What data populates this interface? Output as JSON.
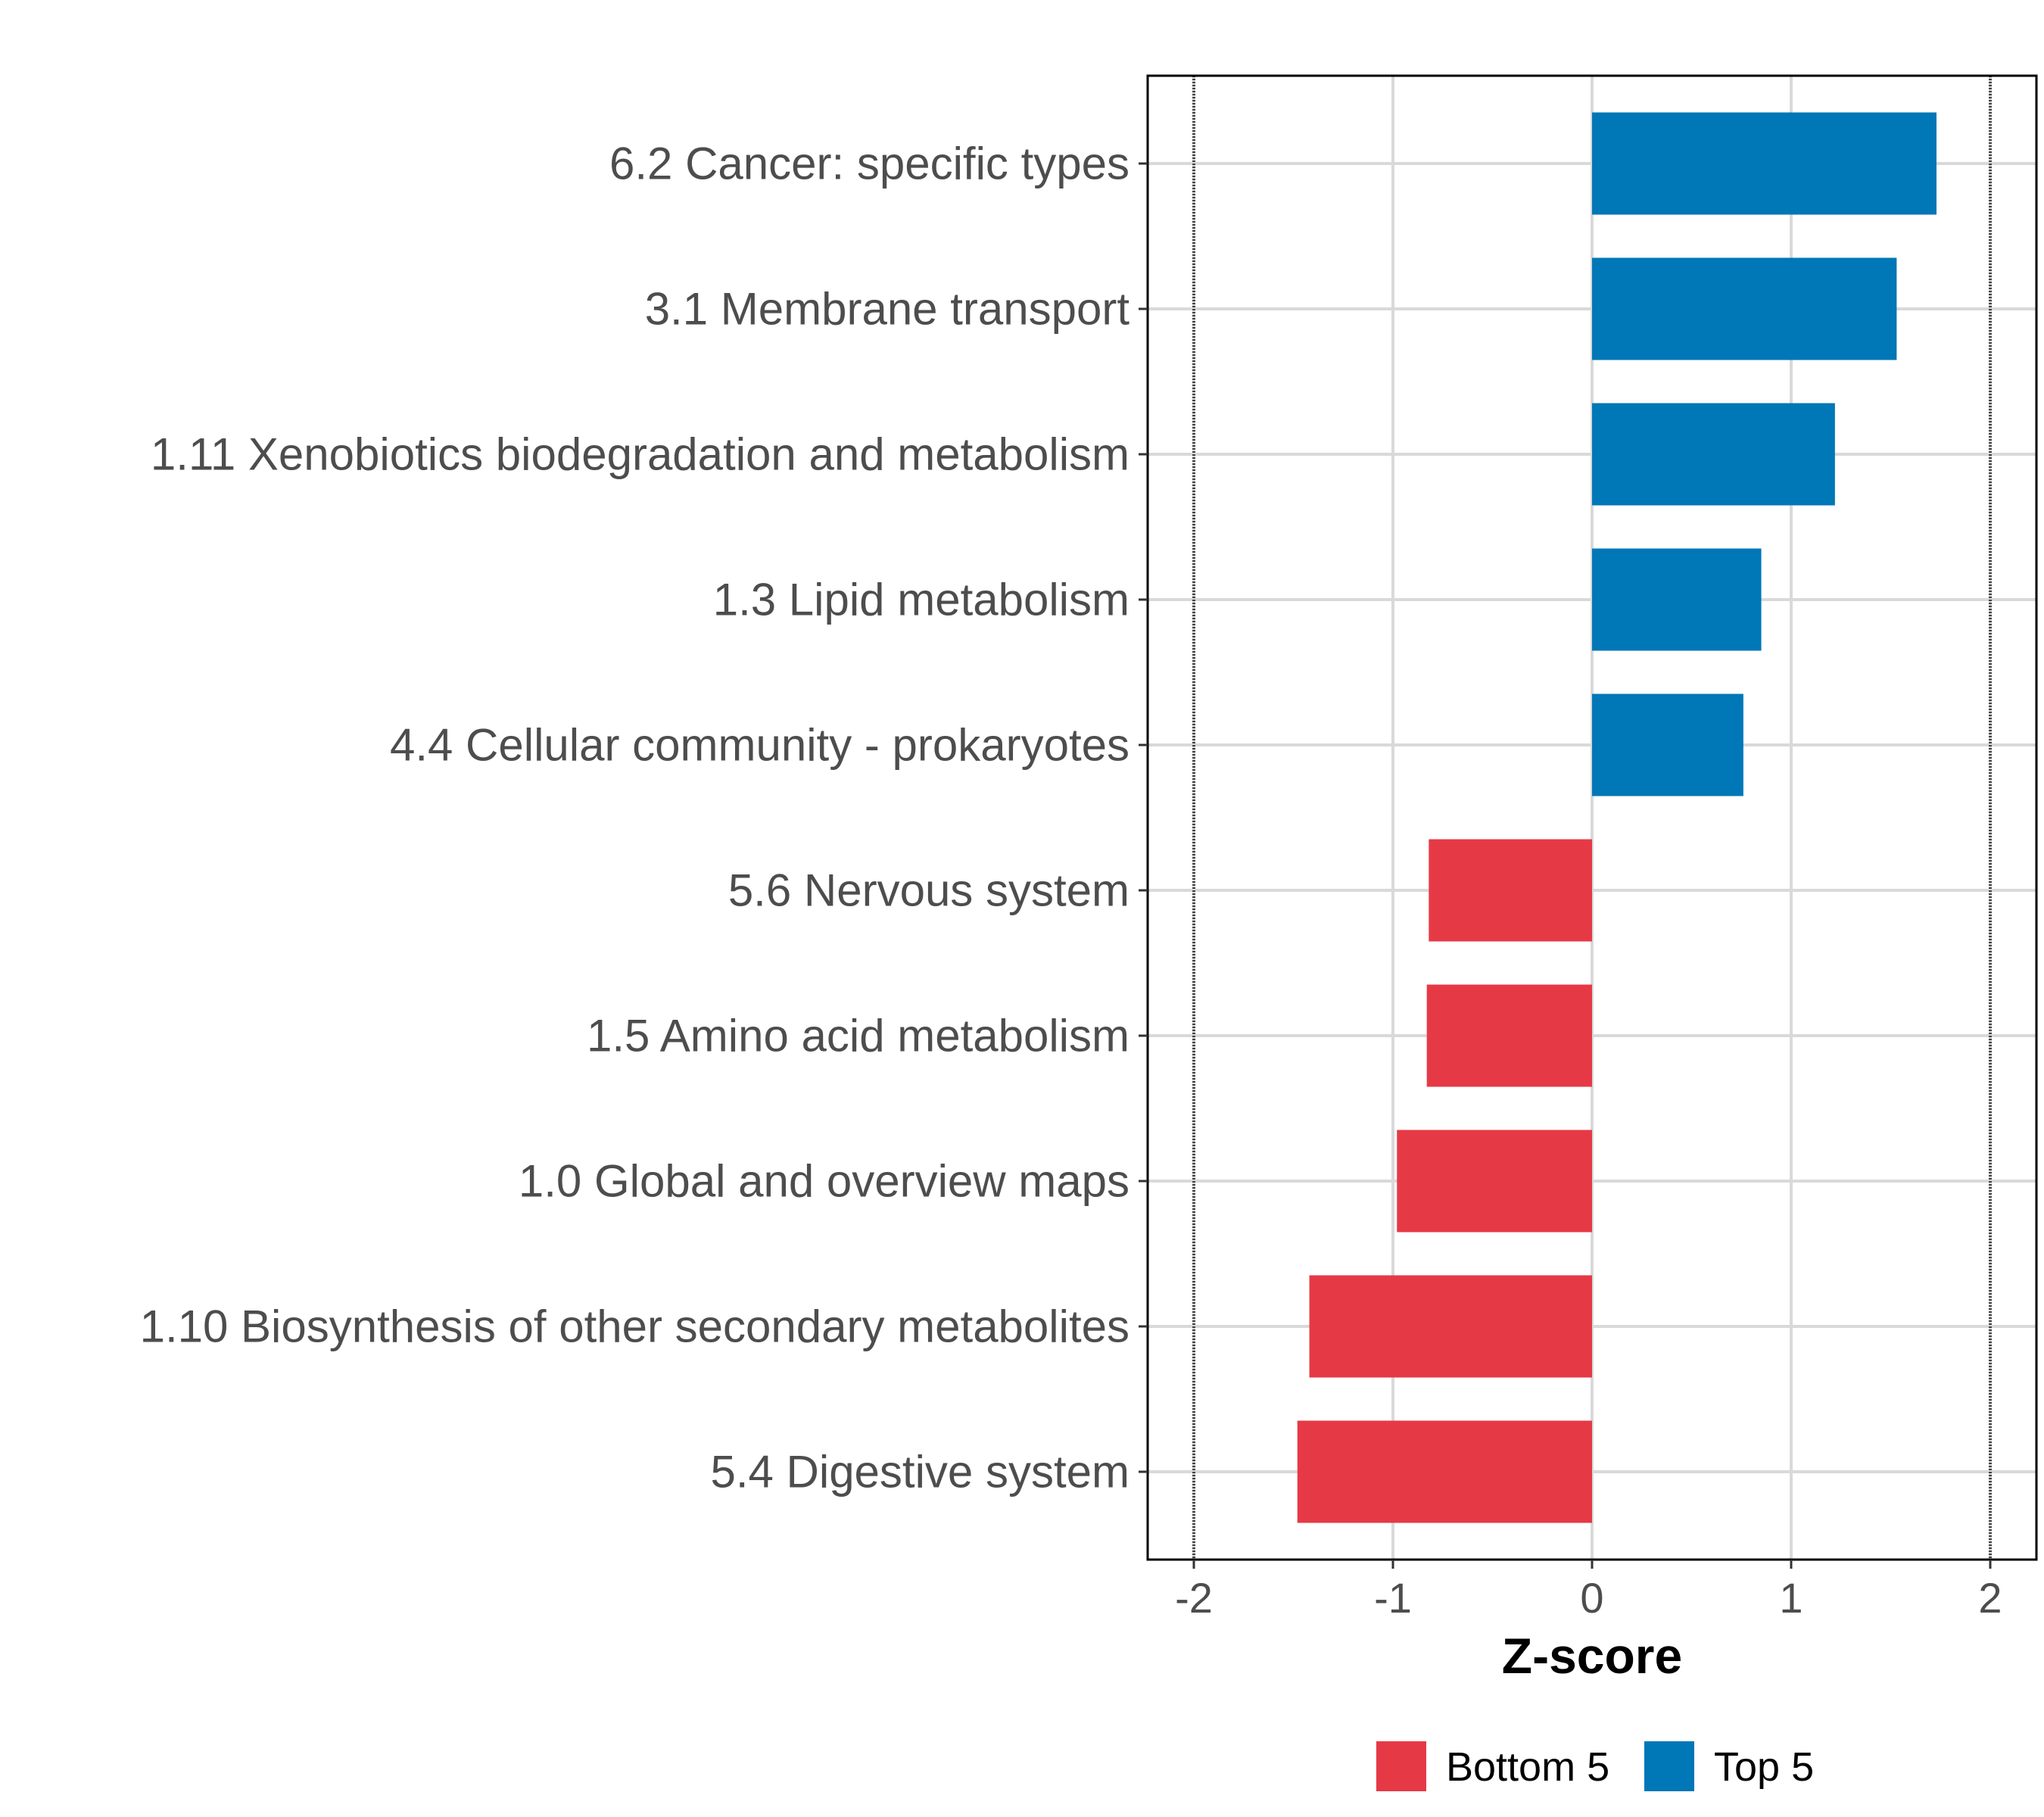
{
  "chart_data": {
    "type": "bar",
    "orientation": "horizontal",
    "title": "",
    "xlabel": "Z-score",
    "ylabel": "",
    "xlim": [
      -2.2,
      2.2
    ],
    "xticks": [
      "-2",
      "-1",
      "0",
      "1",
      "2"
    ],
    "xtick_values": [
      -2,
      -1,
      0,
      1,
      2
    ],
    "reference_lines": [
      -2,
      2
    ],
    "grid": true,
    "categories": [
      "6.2 Cancer: specific types",
      "3.1 Membrane transport",
      "1.11 Xenobiotics biodegradation and metabolism",
      "1.3 Lipid metabolism",
      "4.4 Cellular community - prokaryotes",
      "5.6 Nervous system",
      "1.5 Amino acid metabolism",
      "1.0 Global and overview maps",
      "1.10 Biosynthesis of other secondary metabolites",
      "5.4 Digestive system"
    ],
    "values": [
      1.73,
      1.53,
      1.22,
      0.85,
      0.76,
      -0.82,
      -0.83,
      -0.98,
      -1.42,
      -1.48
    ],
    "groups": [
      "Top 5",
      "Top 5",
      "Top 5",
      "Top 5",
      "Top 5",
      "Bottom 5",
      "Bottom 5",
      "Bottom 5",
      "Bottom 5",
      "Bottom 5"
    ],
    "legend": {
      "placement": "bottom",
      "entries": [
        {
          "label": "Bottom 5",
          "color": "#E63946"
        },
        {
          "label": "Top 5",
          "color": "#0077B6"
        }
      ]
    }
  }
}
